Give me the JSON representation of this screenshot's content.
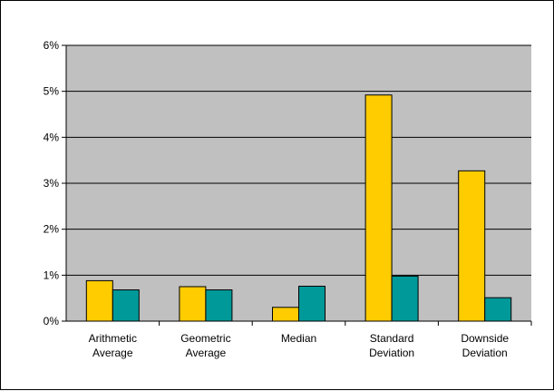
{
  "chart_data": {
    "type": "bar",
    "categories": [
      [
        "Arithmetic",
        "Average"
      ],
      [
        "Geometric",
        "Average"
      ],
      [
        "Median"
      ],
      [
        "Standard",
        "Deviation"
      ],
      [
        "Downside",
        "Deviation"
      ]
    ],
    "series": [
      {
        "values": [
          0.88,
          0.75,
          0.3,
          4.92,
          3.27
        ],
        "color": "#FFCC00"
      },
      {
        "values": [
          0.68,
          0.68,
          0.76,
          0.98,
          0.51
        ],
        "color": "#009999"
      }
    ],
    "yticks": [
      "0%",
      "1%",
      "2%",
      "3%",
      "4%",
      "5%",
      "6%"
    ],
    "ylim": [
      0,
      6
    ],
    "grid": true,
    "plot_background": "#C0C0C0",
    "gridline_color": "#000000"
  }
}
